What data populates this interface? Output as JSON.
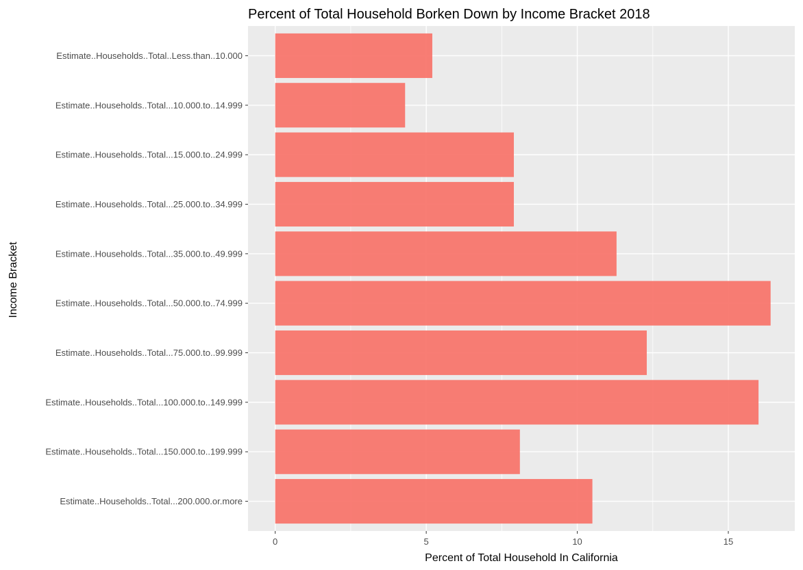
{
  "chart_data": {
    "type": "bar",
    "orientation": "horizontal",
    "title": "Percent of Total Household Borken Down by Income Bracket 2018",
    "xlabel": "Percent of Total Household In California",
    "ylabel": "Income Bracket",
    "categories": [
      "Estimate..Households..Total..Less.than..10.000",
      "Estimate..Households..Total...10.000.to..14.999",
      "Estimate..Households..Total...15.000.to..24.999",
      "Estimate..Households..Total...25.000.to..34.999",
      "Estimate..Households..Total...35.000.to..49.999",
      "Estimate..Households..Total...50.000.to..74.999",
      "Estimate..Households..Total...75.000.to..99.999",
      "Estimate..Households..Total...100.000.to..149.999",
      "Estimate..Households..Total...150.000.to..199.999",
      "Estimate..Households..Total...200.000.or.more"
    ],
    "values": [
      5.2,
      4.3,
      7.9,
      7.9,
      11.3,
      16.4,
      12.3,
      16.0,
      8.1,
      10.5
    ],
    "xlim": [
      -0.9,
      17.2
    ],
    "xticks": [
      0,
      5,
      10,
      15
    ],
    "grid": true,
    "bar_color": "#F8766D",
    "panel_background": "#EBEBEB",
    "grid_color": "#FFFFFF"
  }
}
